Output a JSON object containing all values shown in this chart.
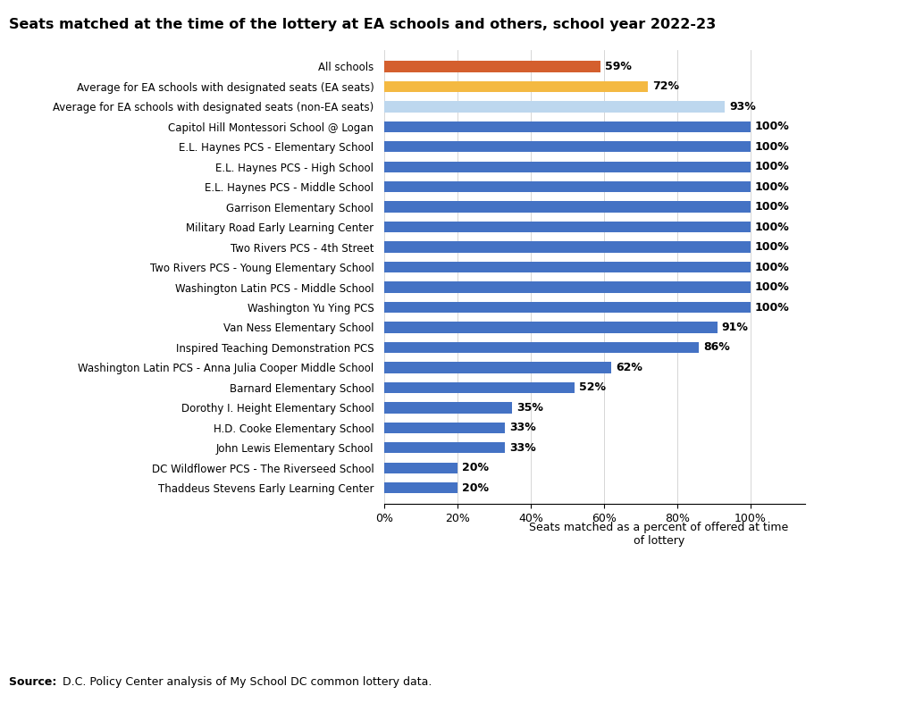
{
  "title": "Seats matched at the time of the lottery at EA schools and others, school year 2022-23",
  "categories": [
    "All schools",
    "Average for EA schools with designated seats (EA seats)",
    "Average for EA schools with designated seats (non-EA seats)",
    "Capitol Hill Montessori School @ Logan",
    "E.L. Haynes PCS - Elementary School",
    "E.L. Haynes PCS - High School",
    "E.L. Haynes PCS - Middle School",
    "Garrison Elementary School",
    "Military Road Early Learning Center",
    "Two Rivers PCS - 4th Street",
    "Two Rivers PCS - Young Elementary School",
    "Washington Latin PCS - Middle School",
    "Washington Yu Ying PCS",
    "Van Ness Elementary School",
    "Inspired Teaching Demonstration PCS",
    "Washington Latin PCS - Anna Julia Cooper Middle School",
    "Barnard Elementary School",
    "Dorothy I. Height Elementary School",
    "H.D. Cooke Elementary School",
    "John Lewis Elementary School",
    "DC Wildflower PCS - The Riverseed School",
    "Thaddeus Stevens Early Learning Center"
  ],
  "values": [
    59,
    72,
    93,
    100,
    100,
    100,
    100,
    100,
    100,
    100,
    100,
    100,
    100,
    91,
    86,
    62,
    52,
    35,
    33,
    33,
    20,
    20
  ],
  "colors": [
    "#D45F2E",
    "#F4B942",
    "#BDD7EE",
    "#4472C4",
    "#4472C4",
    "#4472C4",
    "#4472C4",
    "#4472C4",
    "#4472C4",
    "#4472C4",
    "#4472C4",
    "#4472C4",
    "#4472C4",
    "#4472C4",
    "#4472C4",
    "#4472C4",
    "#4472C4",
    "#4472C4",
    "#4472C4",
    "#4472C4",
    "#4472C4",
    "#4472C4"
  ],
  "xlabel_ticks": [
    0,
    20,
    40,
    60,
    80,
    100
  ],
  "xlabel_tick_labels": [
    "0%",
    "20%",
    "40%",
    "60%",
    "80%",
    "100%"
  ],
  "note": "Seats matched as a percent of offered at time\nof lottery",
  "source": "D.C. Policy Center analysis of My School DC common lottery data.",
  "background_color": "#FFFFFF",
  "bar_height": 0.55
}
